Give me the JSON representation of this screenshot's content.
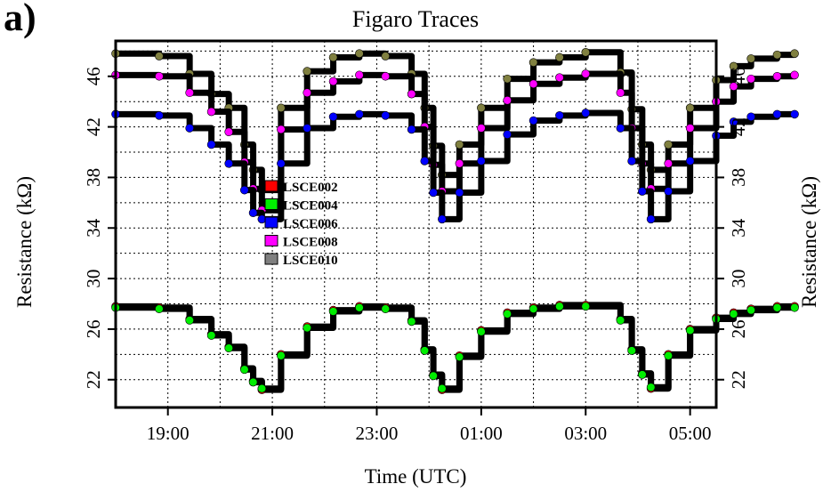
{
  "panel_label": "a)",
  "chart_data": {
    "type": "line",
    "title": "Figaro Traces",
    "xlabel": "Time (UTC)",
    "ylabel": "Resistance (kΩ)",
    "ylabel_right": "Resistance (kΩ)",
    "x_unit": "hours",
    "xlim": [
      18.0,
      5.5
    ],
    "ylim": [
      19.8,
      48.8
    ],
    "x_ticks": [
      "19:00",
      "21:00",
      "23:00",
      "01:00",
      "03:00",
      "05:00"
    ],
    "y_ticks": [
      22,
      26,
      30,
      34,
      38,
      42,
      46
    ],
    "grid": true,
    "grid_style": "dotted",
    "legend": {
      "placement": "center-left",
      "entries": [
        {
          "name": "LSCE002",
          "color": "#ff0000"
        },
        {
          "name": "LSCE004",
          "color": "#00ee00"
        },
        {
          "name": "LSCE006",
          "color": "#0000ff"
        },
        {
          "name": "LSCE008",
          "color": "#ff00ff"
        },
        {
          "name": "LSCE010",
          "color": "#808080"
        }
      ]
    },
    "series": [
      {
        "name": "LSCE010",
        "marker_color": "#808040",
        "x": [
          "18:00",
          "18:50",
          "19:25",
          "19:50",
          "20:10",
          "20:28",
          "20:38",
          "20:48",
          "21:10",
          "21:40",
          "22:10",
          "22:40",
          "23:10",
          "23:40",
          "23:55",
          "24:05",
          "24:15",
          "24:35",
          "25:00",
          "25:30",
          "26:00",
          "26:30",
          "27:00",
          "27:40",
          "27:53",
          "28:05",
          "28:15",
          "28:35",
          "29:00",
          "29:30",
          "29:50",
          "30:10",
          "30:40",
          "31:00"
        ],
        "y": [
          47.8,
          47.6,
          46.2,
          44.6,
          43.5,
          40.6,
          38.6,
          37.0,
          43.5,
          46.4,
          47.5,
          47.8,
          47.6,
          46.2,
          43.5,
          40.5,
          38.2,
          40.6,
          43.5,
          45.8,
          47.1,
          47.5,
          47.9,
          46.3,
          43.4,
          40.6,
          38.6,
          40.6,
          43.5,
          45.7,
          46.8,
          47.4,
          47.7,
          47.8
        ]
      },
      {
        "name": "LSCE008",
        "marker_color": "#ff00ff",
        "x": [
          "18:00",
          "18:50",
          "19:25",
          "19:50",
          "20:10",
          "20:28",
          "20:38",
          "20:48",
          "21:10",
          "21:40",
          "22:10",
          "22:40",
          "23:10",
          "23:40",
          "23:55",
          "24:05",
          "24:15",
          "24:35",
          "25:00",
          "25:30",
          "26:00",
          "26:30",
          "27:00",
          "27:40",
          "27:53",
          "28:05",
          "28:15",
          "28:35",
          "29:00",
          "29:30",
          "29:50",
          "30:10",
          "30:40",
          "31:00"
        ],
        "y": [
          46.1,
          46.0,
          44.7,
          43.2,
          41.6,
          39.2,
          37.1,
          35.4,
          41.8,
          44.7,
          45.6,
          46.1,
          46.0,
          44.6,
          42.0,
          39.0,
          36.9,
          39.1,
          41.9,
          44.1,
          45.4,
          45.9,
          46.2,
          44.7,
          41.9,
          39.1,
          37.1,
          39.1,
          41.9,
          44.0,
          45.2,
          45.8,
          46.0,
          46.1
        ]
      },
      {
        "name": "LSCE006",
        "marker_color": "#0000ff",
        "x": [
          "18:00",
          "18:50",
          "19:25",
          "19:50",
          "20:10",
          "20:28",
          "20:38",
          "20:48",
          "21:10",
          "21:40",
          "22:10",
          "22:40",
          "23:10",
          "23:40",
          "23:55",
          "24:05",
          "24:15",
          "24:35",
          "25:00",
          "25:30",
          "26:00",
          "26:30",
          "27:00",
          "27:40",
          "27:53",
          "28:05",
          "28:15",
          "28:35",
          "29:00",
          "29:30",
          "29:50",
          "30:10",
          "30:40",
          "31:00"
        ],
        "y": [
          43.0,
          42.9,
          41.9,
          40.6,
          39.1,
          37.0,
          35.2,
          34.7,
          39.1,
          41.9,
          42.8,
          43.0,
          42.9,
          41.8,
          39.3,
          36.8,
          34.7,
          36.8,
          39.3,
          41.4,
          42.5,
          42.9,
          43.1,
          41.9,
          39.3,
          36.9,
          34.7,
          36.9,
          39.3,
          41.3,
          42.4,
          42.8,
          43.0,
          43.0
        ]
      },
      {
        "name": "LSCE002",
        "marker_color": "#ff0000",
        "x": [
          "18:00",
          "18:50",
          "19:25",
          "19:50",
          "20:10",
          "20:28",
          "20:38",
          "20:48",
          "21:10",
          "21:40",
          "22:10",
          "22:40",
          "23:10",
          "23:40",
          "23:55",
          "24:05",
          "24:15",
          "24:35",
          "25:00",
          "25:30",
          "26:00",
          "26:30",
          "27:00",
          "27:40",
          "27:53",
          "28:05",
          "28:15",
          "28:35",
          "29:00",
          "29:30",
          "29:50",
          "30:10",
          "30:40",
          "31:00"
        ],
        "y": [
          27.8,
          27.7,
          26.8,
          25.6,
          24.6,
          22.9,
          21.9,
          21.2,
          24.0,
          26.2,
          27.5,
          27.8,
          27.7,
          26.7,
          24.4,
          22.4,
          21.2,
          23.9,
          25.9,
          27.3,
          27.7,
          27.9,
          27.9,
          26.8,
          24.4,
          22.5,
          21.3,
          24.0,
          26.0,
          26.9,
          27.3,
          27.6,
          27.8,
          27.8
        ]
      },
      {
        "name": "LSCE004",
        "marker_color": "#00ee00",
        "x": [
          "18:00",
          "18:50",
          "19:25",
          "19:50",
          "20:10",
          "20:28",
          "20:38",
          "20:48",
          "21:10",
          "21:40",
          "22:10",
          "22:40",
          "23:10",
          "23:40",
          "23:55",
          "24:05",
          "24:15",
          "24:35",
          "25:00",
          "25:30",
          "26:00",
          "26:30",
          "27:00",
          "27:40",
          "27:53",
          "28:05",
          "28:15",
          "28:35",
          "29:00",
          "29:30",
          "29:50",
          "30:10",
          "30:40",
          "31:00"
        ],
        "y": [
          27.7,
          27.6,
          26.7,
          25.5,
          24.5,
          22.8,
          21.8,
          21.3,
          23.9,
          26.1,
          27.4,
          27.7,
          27.6,
          26.6,
          24.3,
          22.3,
          21.3,
          23.8,
          25.8,
          27.2,
          27.6,
          27.8,
          27.8,
          26.7,
          24.3,
          22.4,
          21.4,
          23.9,
          25.9,
          26.8,
          27.2,
          27.5,
          27.7,
          27.7
        ]
      }
    ]
  }
}
